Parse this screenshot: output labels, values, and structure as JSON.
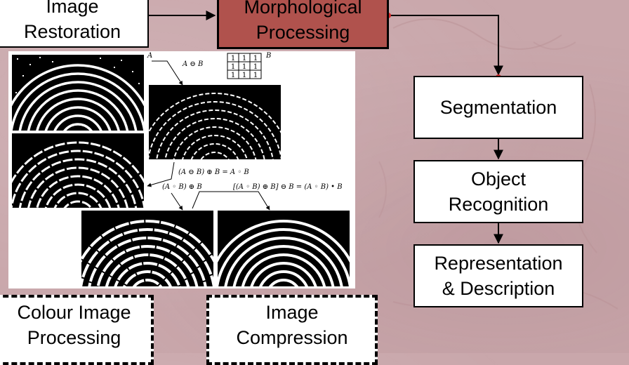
{
  "diagram": {
    "boxes": {
      "image_restoration": [
        "Image",
        "Restoration"
      ],
      "morphological_processing": [
        "Morphological",
        "Processing"
      ],
      "segmentation": [
        "Segmentation"
      ],
      "object_recognition": [
        "Object",
        "Recognition"
      ],
      "representation": [
        "Representation",
        "& Description"
      ],
      "colour_image_processing": [
        "Colour Image",
        "Processing"
      ],
      "image_compression": [
        "Image",
        "Compression"
      ]
    },
    "colors": {
      "background": "#c9a7ab",
      "morphological_box": "#b0524d",
      "connector_dot": "#d42a2a"
    }
  },
  "figure": {
    "label_a": "A",
    "label_b": "B",
    "erosion_label": "A ⊖ B",
    "opening_label": "(A ⊖ B) ⊕ B = A ◦ B",
    "dilation_label": "(A ◦ B) ⊕ B",
    "closing_label": "[(A ◦ B) ⊕ B] ⊖ B = (A ◦ B) • B",
    "structuring_element": [
      [
        "1",
        "1",
        "1"
      ],
      [
        "1",
        "1",
        "1"
      ],
      [
        "1",
        "1",
        "1"
      ]
    ]
  }
}
